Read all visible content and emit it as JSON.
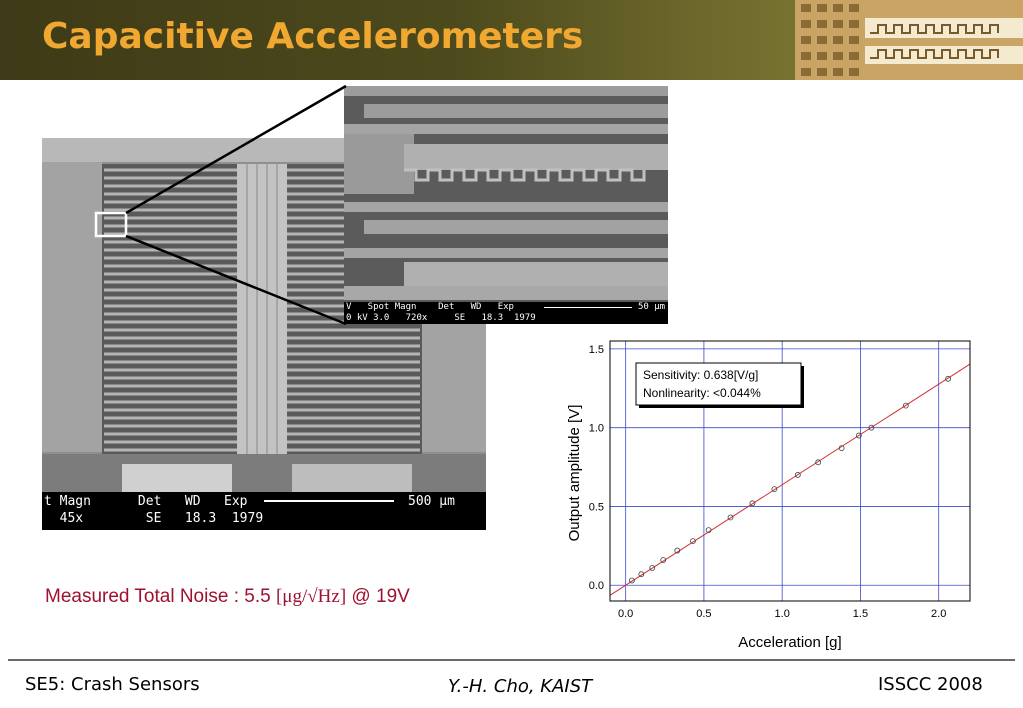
{
  "slide": {
    "title": "Capacitive Accelerometers",
    "noise_prefix": "Measured Total Noise : 5.5 ",
    "noise_unit": "[μg/√Hz]",
    "noise_suffix": " @ 19V"
  },
  "sem_main": {
    "bar_row1": "t Magn      Det   WD   Exp",
    "bar_row2": "  45x        SE   18.3  1979",
    "scale": "500 µm"
  },
  "sem_zoom": {
    "bar_row1": "V   Spot Magn    Det   WD   Exp",
    "bar_row2": "0 kV 3.0   720x     SE   18.3  1979",
    "scale": "50 µm"
  },
  "footer": {
    "left": "SE5: Crash Sensors",
    "center": "Y.-H. Cho, KAIST",
    "right": "ISSCC 2008"
  },
  "colors": {
    "title": "#f0a830",
    "noise": "#a01030",
    "fit_line": "#d03030",
    "grid": "#3a4ad0"
  },
  "chart_data": {
    "type": "scatter",
    "xlabel": "Acceleration [g]",
    "ylabel": "Output amplitude [V]",
    "xlim": [
      -0.1,
      2.2
    ],
    "ylim": [
      -0.1,
      1.55
    ],
    "xticks": [
      "0.0",
      "0.5",
      "1.0",
      "1.5",
      "2.0"
    ],
    "yticks": [
      "0.0",
      "0.5",
      "1.0",
      "1.5"
    ],
    "grid": true,
    "annotation": [
      "Sensitivity: 0.638[V/g]",
      "Nonlinearity: <0.044%"
    ],
    "series": [
      {
        "marker": "open-circle",
        "x": [
          0.04,
          0.1,
          0.17,
          0.24,
          0.33,
          0.43,
          0.53,
          0.67,
          0.81,
          0.95,
          1.1,
          1.23,
          1.38,
          1.49,
          1.57,
          1.79,
          2.06
        ],
        "y": [
          0.03,
          0.07,
          0.11,
          0.16,
          0.22,
          0.28,
          0.35,
          0.43,
          0.52,
          0.61,
          0.7,
          0.78,
          0.87,
          0.95,
          1.0,
          1.14,
          1.31
        ]
      }
    ],
    "fit": {
      "slope": 0.638,
      "intercept": 0.0
    }
  }
}
